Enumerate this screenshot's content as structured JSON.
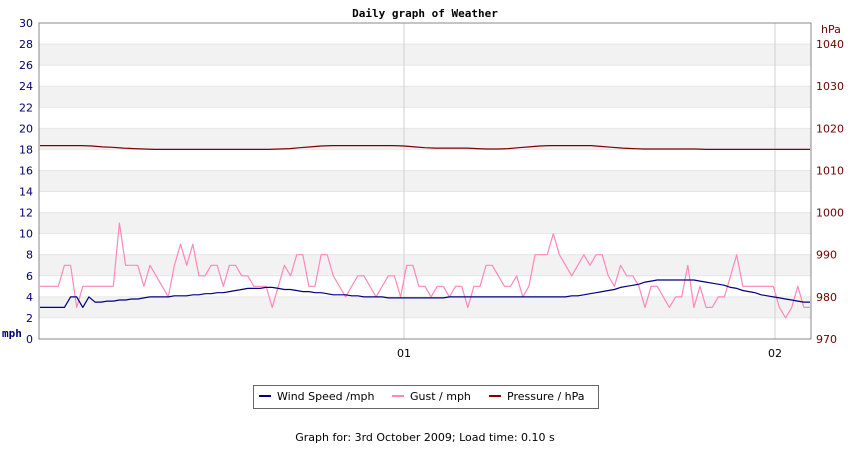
{
  "chart_data": {
    "type": "line",
    "title": "Daily graph of Weather",
    "y_left_unit": "mph",
    "y_right_unit": "hPa",
    "y_left_range": [
      0,
      30
    ],
    "y_left_ticks": [
      "0",
      "2",
      "4",
      "6",
      "8",
      "10",
      "12",
      "14",
      "16",
      "18",
      "20",
      "22",
      "24",
      "26",
      "28",
      "30"
    ],
    "y_right_range": [
      970,
      1045
    ],
    "y_right_ticks": [
      "970",
      "980",
      "990",
      "1000",
      "1010",
      "1020",
      "1030",
      "1040"
    ],
    "x_tick_labels": [
      "01",
      "02"
    ],
    "grid": true,
    "legend_position": "bottom",
    "colors": {
      "wind": "#000080",
      "gust": "#ff88bb",
      "pressure": "#800000"
    },
    "series": [
      {
        "name": "Wind Speed /mph",
        "axis": "left",
        "values": [
          3,
          3,
          3,
          3,
          3,
          4,
          4,
          3,
          4,
          3.5,
          3.5,
          3.6,
          3.6,
          3.7,
          3.7,
          3.8,
          3.8,
          3.9,
          4,
          4,
          4,
          4,
          4.1,
          4.1,
          4.1,
          4.2,
          4.2,
          4.3,
          4.3,
          4.4,
          4.4,
          4.5,
          4.6,
          4.7,
          4.8,
          4.8,
          4.8,
          4.9,
          4.9,
          4.8,
          4.7,
          4.7,
          4.6,
          4.5,
          4.5,
          4.4,
          4.4,
          4.3,
          4.2,
          4.2,
          4.2,
          4.1,
          4.1,
          4,
          4,
          4,
          4,
          3.9,
          3.9,
          3.9,
          3.9,
          3.9,
          3.9,
          3.9,
          3.9,
          3.9,
          3.9,
          4,
          4,
          4,
          4,
          4,
          4,
          4,
          4,
          4,
          4,
          4,
          4,
          4,
          4,
          4,
          4,
          4,
          4,
          4,
          4,
          4.1,
          4.1,
          4.2,
          4.3,
          4.4,
          4.5,
          4.6,
          4.7,
          4.9,
          5,
          5.1,
          5.2,
          5.4,
          5.5,
          5.6,
          5.6,
          5.6,
          5.6,
          5.6,
          5.6,
          5.6,
          5.5,
          5.4,
          5.3,
          5.2,
          5.1,
          4.9,
          4.8,
          4.6,
          4.5,
          4.4,
          4.2,
          4.1,
          4,
          3.9,
          3.8,
          3.7,
          3.6,
          3.5,
          3.5
        ]
      },
      {
        "name": "Gust / mph",
        "axis": "left",
        "values": [
          5,
          5,
          5,
          5,
          7,
          7,
          3,
          5,
          5,
          5,
          5,
          5,
          5,
          11,
          7,
          7,
          7,
          5,
          7,
          6,
          5,
          4,
          7,
          9,
          7,
          9,
          6,
          6,
          7,
          7,
          5,
          7,
          7,
          6,
          6,
          5,
          5,
          5,
          3,
          5,
          7,
          6,
          8,
          8,
          5,
          5,
          8,
          8,
          6,
          5,
          4,
          5,
          6,
          6,
          5,
          4,
          5,
          6,
          6,
          4,
          7,
          7,
          5,
          5,
          4,
          5,
          5,
          4,
          5,
          5,
          3,
          5,
          5,
          7,
          7,
          6,
          5,
          5,
          6,
          4,
          5,
          8,
          8,
          8,
          10,
          8,
          7,
          6,
          7,
          8,
          7,
          8,
          8,
          6,
          5,
          7,
          6,
          6,
          5,
          3,
          5,
          5,
          4,
          3,
          4,
          4,
          7,
          3,
          5,
          3,
          3,
          4,
          4,
          6,
          8,
          5,
          5,
          5,
          5,
          5,
          5,
          3,
          2,
          3,
          5,
          3,
          3
        ]
      },
      {
        "name": "Pressure / hPa",
        "axis": "right",
        "values": [
          1015.9,
          1015.9,
          1015.9,
          1015.9,
          1015.9,
          1015.8,
          1015.6,
          1015.5,
          1015.3,
          1015.2,
          1015.1,
          1015.0,
          1015.0,
          1015.0,
          1015.0,
          1015.0,
          1015.0,
          1015.0,
          1015.0,
          1015.0,
          1015.0,
          1015.0,
          1015.0,
          1015.1,
          1015.2,
          1015.4,
          1015.6,
          1015.8,
          1015.9,
          1015.9,
          1015.9,
          1015.9,
          1015.9,
          1015.9,
          1015.9,
          1015.8,
          1015.6,
          1015.4,
          1015.3,
          1015.3,
          1015.3,
          1015.3,
          1015.2,
          1015.1,
          1015.1,
          1015.2,
          1015.4,
          1015.6,
          1015.8,
          1015.9,
          1015.9,
          1015.9,
          1015.9,
          1015.9,
          1015.7,
          1015.5,
          1015.3,
          1015.2,
          1015.1,
          1015.1,
          1015.1,
          1015.1,
          1015.1,
          1015.1,
          1015.0,
          1015.0,
          1015.0,
          1015.0,
          1015.0,
          1015.0,
          1015.0,
          1015.0,
          1015.0,
          1015.0,
          1015.0
        ]
      }
    ]
  },
  "legend": {
    "wind_label": "Wind Speed /mph",
    "gust_label": "Gust / mph",
    "pressure_label": "Pressure / hPa"
  },
  "footer": {
    "text": "Graph for: 3rd October 2009; Load time: 0.10 s"
  }
}
